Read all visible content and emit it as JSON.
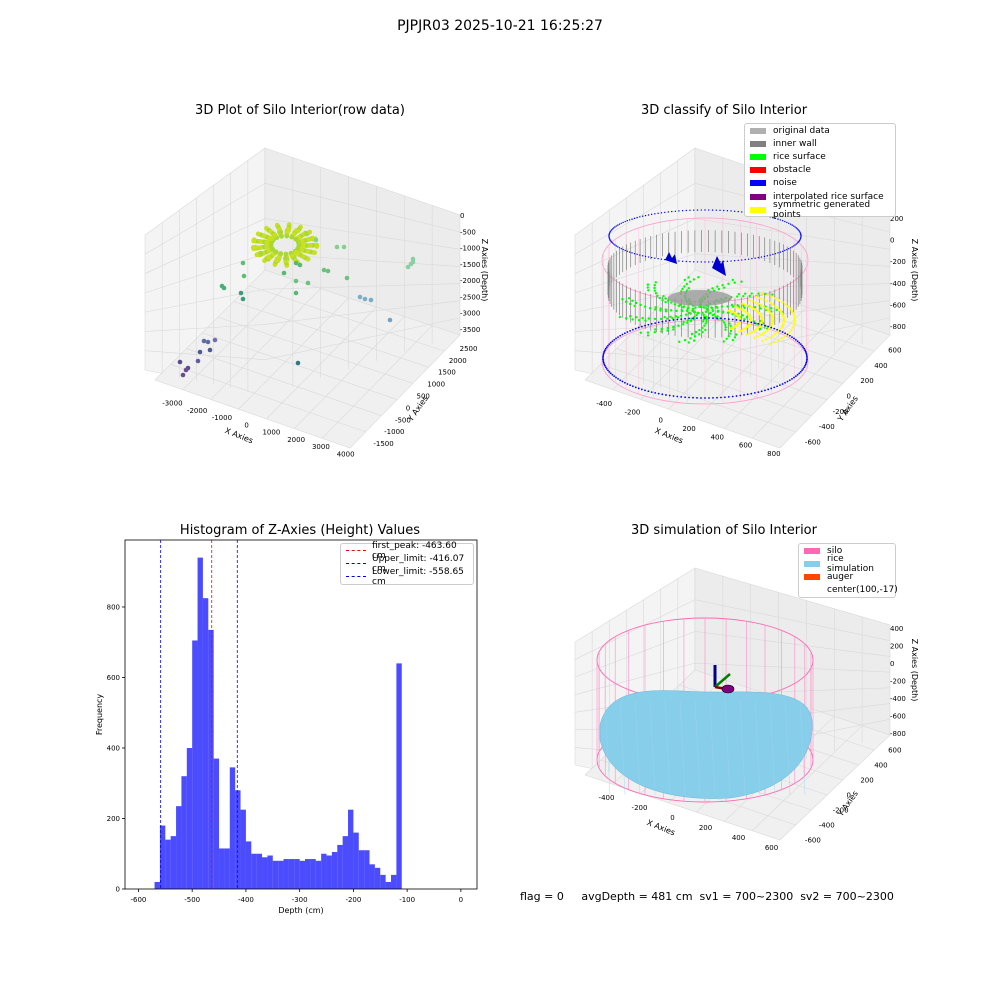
{
  "figure": {
    "suptitle": "PJPJR03 2025-10-21 16:25:27",
    "footer": "flag = 0     avgDepth = 481 cm  sv1 = 700~2300  sv2 = 700~2300"
  },
  "panels": {
    "raw": {
      "title": "3D Plot of Silo Interior(row data)",
      "xlabel": "X Axies",
      "ylabel": "Y Axies",
      "zlabel": "Z Axies (Depth)",
      "xticks": [
        "-3000",
        "-2000",
        "-1000",
        "0",
        "1000",
        "2000",
        "3000",
        "4000"
      ],
      "yticks": [
        "-1500",
        "-1000",
        "-500",
        "0",
        "500",
        "1000",
        "1500",
        "2000",
        "2500"
      ],
      "zticks": [
        "0",
        "-500",
        "-1000",
        "-1500",
        "-2000",
        "-2500",
        "-3000",
        "-3500"
      ]
    },
    "classify": {
      "title": "3D classify of Silo Interior",
      "xlabel": "X Axies",
      "ylabel": "Y Axies",
      "zlabel": "Z Axies (Depth)",
      "xticks": [
        "-400",
        "-200",
        "0",
        "200",
        "400",
        "600",
        "800"
      ],
      "yticks": [
        "-600",
        "-400",
        "-200",
        "0",
        "200",
        "400",
        "600"
      ],
      "zticks": [
        "200",
        "0",
        "-200",
        "-400",
        "-600",
        "-800"
      ],
      "legend": [
        {
          "label": "original data",
          "color": "#b0b0b0"
        },
        {
          "label": "inner wall",
          "color": "#808080"
        },
        {
          "label": "rice surface",
          "color": "#00ff00"
        },
        {
          "label": "obstacle",
          "color": "#ff0000"
        },
        {
          "label": "noise",
          "color": "#0000ff"
        },
        {
          "label": "interpolated rice surface",
          "color": "#800080"
        },
        {
          "label": "symmetric generated points",
          "color": "#ffff00"
        }
      ]
    },
    "simulation": {
      "title": "3D simulation of Silo Interior",
      "xlabel": "X Axies",
      "ylabel": "Y Axies",
      "zlabel": "Z Axies (Depth)",
      "xticks": [
        "-400",
        "-200",
        "0",
        "200",
        "400",
        "600"
      ],
      "yticks": [
        "-600",
        "-400",
        "-200",
        "0",
        "200",
        "400",
        "600"
      ],
      "zticks": [
        "400",
        "200",
        "0",
        "-200",
        "-400",
        "-600",
        "-800"
      ],
      "legend": [
        {
          "label": "silo",
          "color": "#ff69b4"
        },
        {
          "label": "rice simulation",
          "color": "#87ceeb"
        },
        {
          "label": "auger",
          "color": "#ff4500"
        },
        {
          "label": "center(100,-17)",
          "color": ""
        }
      ]
    }
  },
  "chart_data": {
    "type": "bar",
    "title": "Histogram of Z-Axies (Height) Values",
    "xlabel": "Depth (cm)",
    "ylabel": "Frequency",
    "xlim": [
      -625,
      30
    ],
    "ylim": [
      0,
      990
    ],
    "xticks": [
      -600,
      -500,
      -400,
      -300,
      -200,
      -100,
      0
    ],
    "yticks": [
      0,
      200,
      400,
      600,
      800
    ],
    "bar_color": "#0000ff",
    "bin_start": -570,
    "bin_width": 10,
    "values": [
      20,
      180,
      140,
      150,
      235,
      320,
      400,
      705,
      940,
      825,
      735,
      370,
      115,
      115,
      345,
      280,
      225,
      135,
      100,
      100,
      90,
      95,
      80,
      80,
      85,
      85,
      85,
      80,
      85,
      85,
      80,
      100,
      95,
      105,
      125,
      150,
      225,
      160,
      110,
      110,
      70,
      60,
      40,
      20,
      40,
      640
    ],
    "lines": [
      {
        "label": "first_peak: -463.60 cm",
        "x": -463.6,
        "color": "#ff0000"
      },
      {
        "label": "Upper_limit: -416.07 cm",
        "x": -416.07,
        "color": "#0000ff"
      },
      {
        "label": "Lower_limit: -558.65 cm",
        "x": -558.65,
        "color": "#0000ff"
      }
    ]
  }
}
